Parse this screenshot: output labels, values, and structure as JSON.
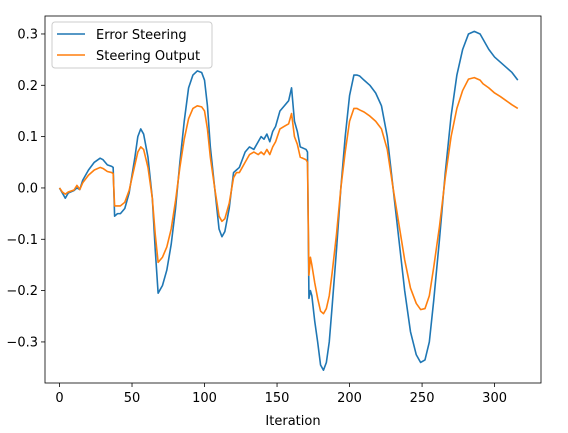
{
  "chart_data": {
    "type": "line",
    "title": "",
    "xlabel": "Iteration",
    "ylabel": "",
    "xlim": [
      -10,
      332
    ],
    "ylim": [
      -0.38,
      0.335
    ],
    "xticks": [
      0,
      50,
      100,
      150,
      200,
      250,
      300
    ],
    "yticks": [
      -0.3,
      -0.2,
      -0.1,
      0.0,
      0.1,
      0.2,
      0.3
    ],
    "xtick_labels": [
      "0",
      "50",
      "100",
      "150",
      "200",
      "250",
      "300"
    ],
    "ytick_labels": [
      "−0.3",
      "−0.2",
      "−0.1",
      "0.0",
      "0.1",
      "0.2",
      "0.3"
    ],
    "grid": false,
    "legend_position": "upper-left",
    "series": [
      {
        "name": "Error Steering",
        "color": "#1f77b4",
        "x": [
          0,
          2,
          4,
          6,
          10,
          12,
          14,
          16,
          20,
          24,
          28,
          30,
          33,
          36,
          37,
          38,
          40,
          42,
          45,
          48,
          52,
          54,
          56,
          58,
          61,
          64,
          66,
          68,
          71,
          74,
          77,
          80,
          83,
          86,
          89,
          92,
          95,
          98,
          100,
          102,
          104,
          107,
          110,
          112,
          114,
          117,
          120,
          122,
          124,
          126,
          128,
          131,
          134,
          137,
          139,
          141,
          143,
          145,
          147,
          149,
          152,
          155,
          158,
          160,
          162,
          164,
          166,
          170,
          171,
          172,
          173,
          174,
          176,
          178,
          180,
          182,
          184,
          186,
          188,
          191,
          194,
          197,
          200,
          203,
          205,
          207,
          210,
          214,
          218,
          222,
          226,
          230,
          234,
          238,
          242,
          246,
          249,
          252,
          255,
          258,
          262,
          266,
          270,
          274,
          278,
          282,
          286,
          290,
          292,
          296,
          300,
          304,
          308,
          312,
          316
        ],
        "y": [
          0.0,
          -0.01,
          -0.02,
          -0.01,
          -0.005,
          0.0,
          -0.003,
          0.015,
          0.035,
          0.05,
          0.058,
          0.055,
          0.045,
          0.042,
          0.04,
          -0.055,
          -0.05,
          -0.05,
          -0.04,
          -0.01,
          0.06,
          0.1,
          0.115,
          0.105,
          0.06,
          -0.02,
          -0.12,
          -0.205,
          -0.19,
          -0.16,
          -0.11,
          -0.04,
          0.05,
          0.13,
          0.195,
          0.22,
          0.228,
          0.225,
          0.21,
          0.16,
          0.08,
          0.0,
          -0.08,
          -0.095,
          -0.085,
          -0.04,
          0.03,
          0.035,
          0.04,
          0.055,
          0.07,
          0.08,
          0.075,
          0.09,
          0.1,
          0.095,
          0.105,
          0.09,
          0.11,
          0.12,
          0.15,
          0.16,
          0.17,
          0.195,
          0.13,
          0.11,
          0.08,
          0.075,
          0.07,
          -0.215,
          -0.2,
          -0.21,
          -0.26,
          -0.3,
          -0.345,
          -0.355,
          -0.34,
          -0.3,
          -0.23,
          -0.12,
          0.0,
          0.1,
          0.18,
          0.22,
          0.22,
          0.218,
          0.21,
          0.2,
          0.185,
          0.16,
          0.1,
          0.0,
          -0.1,
          -0.2,
          -0.28,
          -0.325,
          -0.34,
          -0.335,
          -0.3,
          -0.22,
          -0.1,
          0.03,
          0.14,
          0.22,
          0.27,
          0.3,
          0.305,
          0.3,
          0.29,
          0.27,
          0.255,
          0.245,
          0.235,
          0.225,
          0.21
        ]
      },
      {
        "name": "Steering Output",
        "color": "#ff7f0e",
        "x": [
          0,
          2,
          4,
          6,
          10,
          12,
          14,
          16,
          20,
          24,
          28,
          30,
          33,
          36,
          37,
          38,
          40,
          42,
          45,
          48,
          52,
          54,
          56,
          58,
          61,
          64,
          66,
          68,
          71,
          74,
          77,
          80,
          83,
          86,
          89,
          92,
          95,
          98,
          100,
          102,
          104,
          107,
          110,
          112,
          114,
          117,
          120,
          122,
          124,
          126,
          128,
          131,
          134,
          137,
          139,
          141,
          143,
          145,
          147,
          149,
          152,
          155,
          158,
          160,
          162,
          164,
          166,
          170,
          171,
          172,
          173,
          174,
          176,
          178,
          180,
          182,
          184,
          186,
          188,
          191,
          194,
          197,
          200,
          203,
          205,
          207,
          210,
          214,
          218,
          222,
          226,
          230,
          234,
          238,
          242,
          246,
          249,
          252,
          255,
          258,
          262,
          266,
          270,
          274,
          278,
          282,
          286,
          290,
          292,
          296,
          300,
          304,
          308,
          312,
          316
        ],
        "y": [
          0.0,
          -0.008,
          -0.012,
          -0.008,
          -0.004,
          0.005,
          -0.003,
          0.01,
          0.025,
          0.035,
          0.04,
          0.038,
          0.032,
          0.03,
          0.028,
          -0.035,
          -0.035,
          -0.035,
          -0.028,
          -0.005,
          0.045,
          0.07,
          0.08,
          0.075,
          0.04,
          -0.02,
          -0.09,
          -0.145,
          -0.135,
          -0.115,
          -0.08,
          -0.025,
          0.04,
          0.095,
          0.135,
          0.155,
          0.16,
          0.158,
          0.15,
          0.115,
          0.06,
          0.0,
          -0.055,
          -0.065,
          -0.06,
          -0.03,
          0.02,
          0.03,
          0.03,
          0.04,
          0.05,
          0.065,
          0.07,
          0.065,
          0.07,
          0.065,
          0.075,
          0.065,
          0.08,
          0.09,
          0.115,
          0.12,
          0.125,
          0.145,
          0.1,
          0.085,
          0.06,
          0.055,
          0.05,
          -0.17,
          -0.135,
          -0.15,
          -0.185,
          -0.215,
          -0.24,
          -0.245,
          -0.235,
          -0.21,
          -0.165,
          -0.09,
          0.0,
          0.07,
          0.13,
          0.155,
          0.155,
          0.152,
          0.148,
          0.14,
          0.13,
          0.115,
          0.075,
          0.0,
          -0.07,
          -0.14,
          -0.195,
          -0.225,
          -0.237,
          -0.235,
          -0.21,
          -0.155,
          -0.075,
          0.02,
          0.1,
          0.155,
          0.19,
          0.212,
          0.215,
          0.21,
          0.203,
          0.195,
          0.185,
          0.178,
          0.17,
          0.162,
          0.155
        ]
      }
    ]
  }
}
